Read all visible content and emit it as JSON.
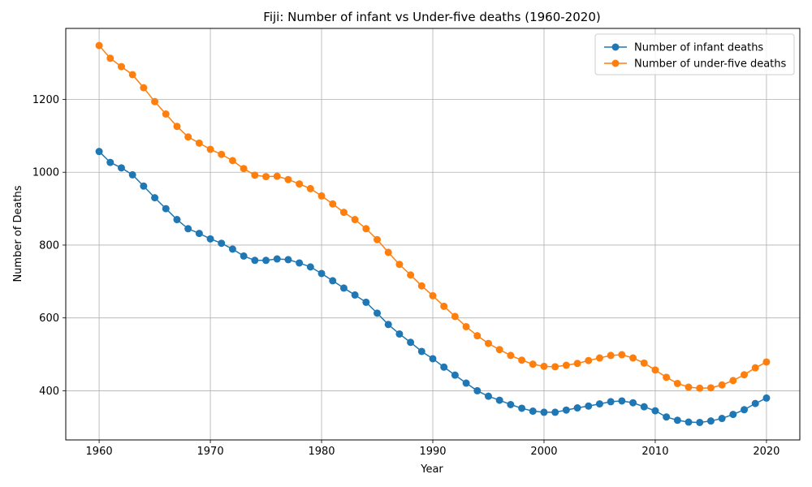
{
  "chart_data": {
    "type": "line",
    "title": "Fiji: Number of infant vs Under-five deaths (1960-2020)",
    "xlabel": "Year",
    "ylabel": "Number of Deaths",
    "xlim": [
      1957,
      2023
    ],
    "ylim": [
      265,
      1395
    ],
    "xticks": [
      1960,
      1970,
      1980,
      1990,
      2000,
      2010,
      2020
    ],
    "yticks": [
      400,
      600,
      800,
      1000,
      1200
    ],
    "grid": true,
    "legend_position": "upper-right",
    "x": [
      1960,
      1961,
      1962,
      1963,
      1964,
      1965,
      1966,
      1967,
      1968,
      1969,
      1970,
      1971,
      1972,
      1973,
      1974,
      1975,
      1976,
      1977,
      1978,
      1979,
      1980,
      1981,
      1982,
      1983,
      1984,
      1985,
      1986,
      1987,
      1988,
      1989,
      1990,
      1991,
      1992,
      1993,
      1994,
      1995,
      1996,
      1997,
      1998,
      1999,
      2000,
      2001,
      2002,
      2003,
      2004,
      2005,
      2006,
      2007,
      2008,
      2009,
      2010,
      2011,
      2012,
      2013,
      2014,
      2015,
      2016,
      2017,
      2018,
      2019,
      2020
    ],
    "series": [
      {
        "name": "Number of infant deaths",
        "color": "#1f77b4",
        "values": [
          1057,
          1027,
          1012,
          993,
          962,
          930,
          900,
          870,
          845,
          832,
          817,
          805,
          789,
          770,
          758,
          758,
          762,
          760,
          751,
          740,
          722,
          702,
          682,
          663,
          643,
          613,
          582,
          556,
          533,
          508,
          488,
          465,
          443,
          421,
          400,
          385,
          374,
          362,
          352,
          344,
          341,
          341,
          347,
          353,
          358,
          364,
          370,
          372,
          367,
          356,
          345,
          328,
          319,
          314,
          313,
          317,
          324,
          335,
          348,
          365,
          380
        ]
      },
      {
        "name": "Number of under-five deaths",
        "color": "#ff7f0e",
        "values": [
          1348,
          1313,
          1290,
          1268,
          1232,
          1194,
          1160,
          1126,
          1097,
          1080,
          1063,
          1049,
          1032,
          1010,
          992,
          988,
          989,
          980,
          968,
          955,
          935,
          913,
          890,
          870,
          845,
          815,
          780,
          747,
          718,
          688,
          661,
          632,
          604,
          576,
          551,
          530,
          513,
          497,
          484,
          473,
          467,
          466,
          470,
          475,
          483,
          490,
          497,
          499,
          490,
          476,
          457,
          437,
          420,
          410,
          407,
          408,
          416,
          428,
          444,
          463,
          479
        ]
      }
    ]
  }
}
